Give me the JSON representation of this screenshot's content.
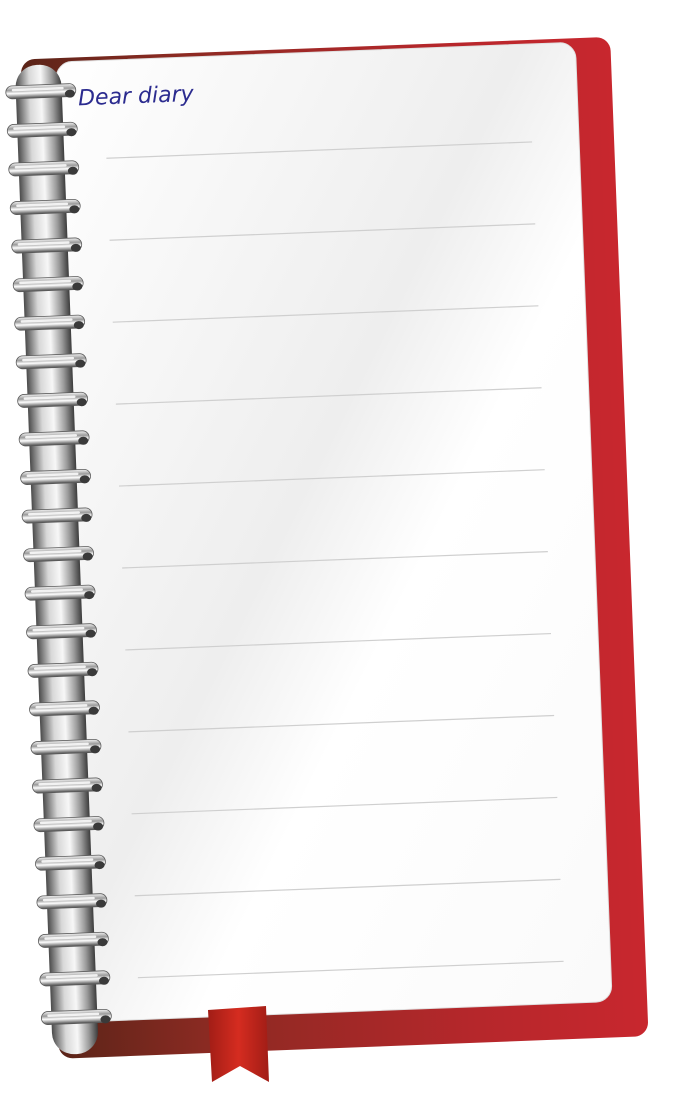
{
  "page": {
    "heading": "Dear diary"
  },
  "notebook": {
    "cover_color": "#c0272d",
    "cover_dark": "#6e2a1f",
    "page_color": "#ffffff",
    "line_color": "#cfcfcf",
    "ruled_line_count": 11,
    "ring_count": 25,
    "heading_color": "#2b2b8f"
  },
  "tabs": [
    {
      "name": "tab-cyan",
      "color": "#27c3e8"
    },
    {
      "name": "tab-green",
      "color": "#5cb646"
    },
    {
      "name": "tab-yellow",
      "color": "#f2b600"
    },
    {
      "name": "tab-orange",
      "color": "#f07127"
    },
    {
      "name": "tab-magenta",
      "color": "#b3268a"
    }
  ],
  "bookmark": {
    "color": "#c8281e"
  }
}
